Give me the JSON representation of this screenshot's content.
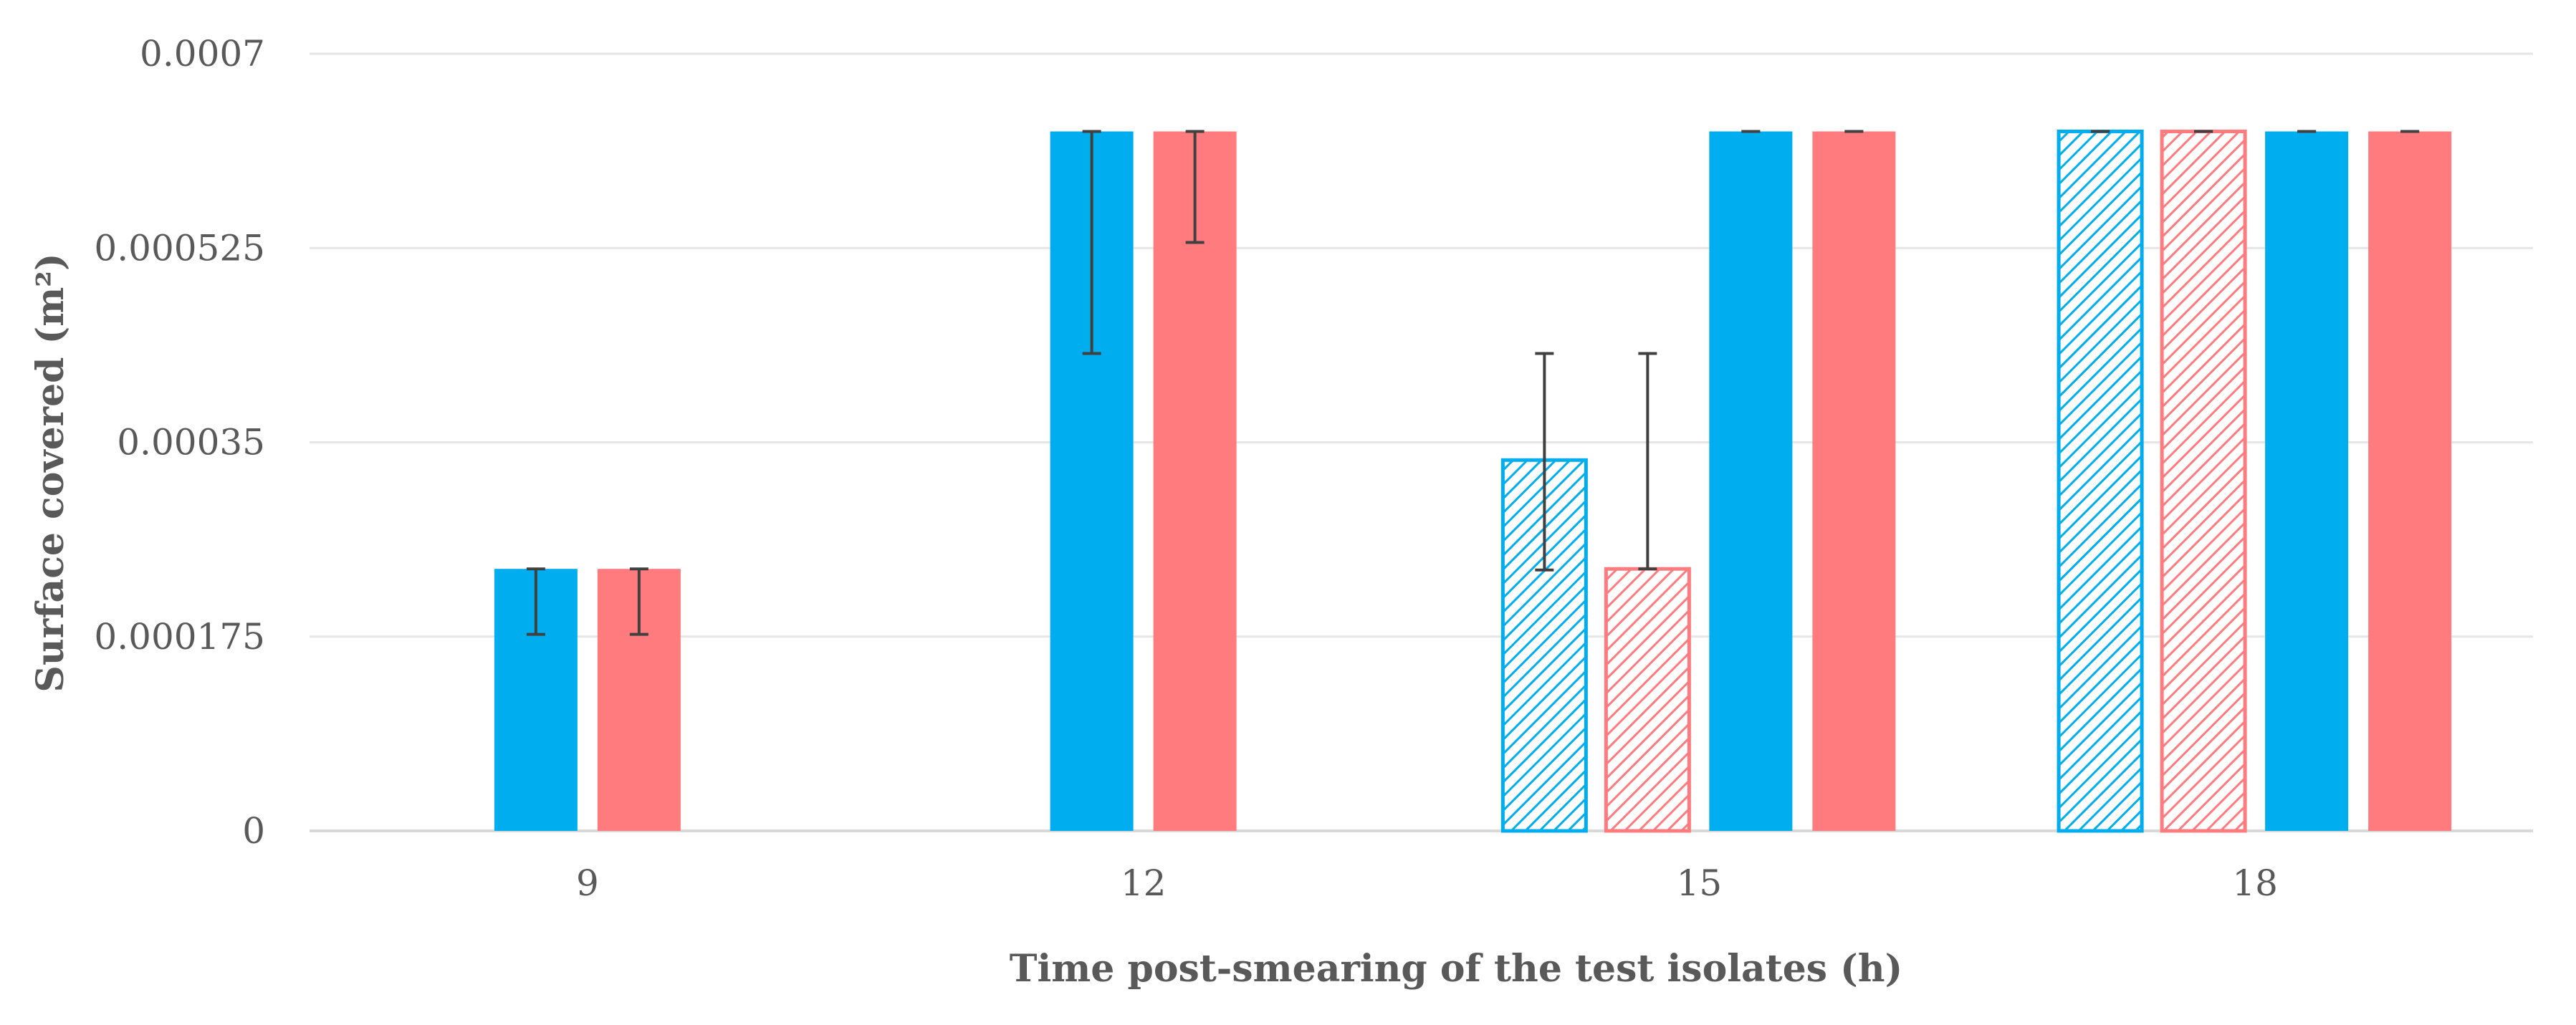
{
  "chart_data": {
    "type": "bar",
    "title": "",
    "xlabel": "Time post-smearing of the test isolates (h)",
    "ylabel": "Surface covered (m²)",
    "categories": [
      "9",
      "12",
      "15",
      "18"
    ],
    "yticks": [
      "0",
      "0.000175",
      "0.00035",
      "0.000525",
      "0.0007"
    ],
    "ylim": [
      0,
      0.0007
    ],
    "grid": true,
    "colors": {
      "blue": "#00AEEF",
      "red": "#FF7B7E",
      "grid": "#E6E6E6",
      "axis": "#D9D9D9",
      "error": "#404040"
    },
    "series": [
      {
        "name": "Blue (hatched)",
        "color": "#00AEEF",
        "pattern": "hatched",
        "values": [
          null,
          null,
          0.000334,
          0.00063
        ],
        "err_low": [
          null,
          null,
          0.000235,
          0.00063
        ],
        "err_high": [
          null,
          null,
          0.00043,
          0.00063
        ]
      },
      {
        "name": "Red (hatched)",
        "color": "#FF7B7E",
        "pattern": "hatched",
        "values": [
          null,
          null,
          0.000236,
          0.00063
        ],
        "err_low": [
          null,
          null,
          0.000236,
          0.00063
        ],
        "err_high": [
          null,
          null,
          0.00043,
          0.00063
        ]
      },
      {
        "name": "Blue (solid)",
        "color": "#00AEEF",
        "pattern": "solid",
        "values": [
          0.000236,
          0.00063,
          0.00063,
          0.00063
        ],
        "err_low": [
          0.000177,
          0.00043,
          0.00063,
          0.00063
        ],
        "err_high": [
          0.000236,
          0.00063,
          0.00063,
          0.00063
        ]
      },
      {
        "name": "Red (solid)",
        "color": "#FF7B7E",
        "pattern": "solid",
        "values": [
          0.000236,
          0.00063,
          0.00063,
          0.00063
        ],
        "err_low": [
          0.000177,
          0.00053,
          0.00063,
          0.00063
        ],
        "err_high": [
          0.000236,
          0.00063,
          0.00063,
          0.00063
        ]
      }
    ]
  }
}
